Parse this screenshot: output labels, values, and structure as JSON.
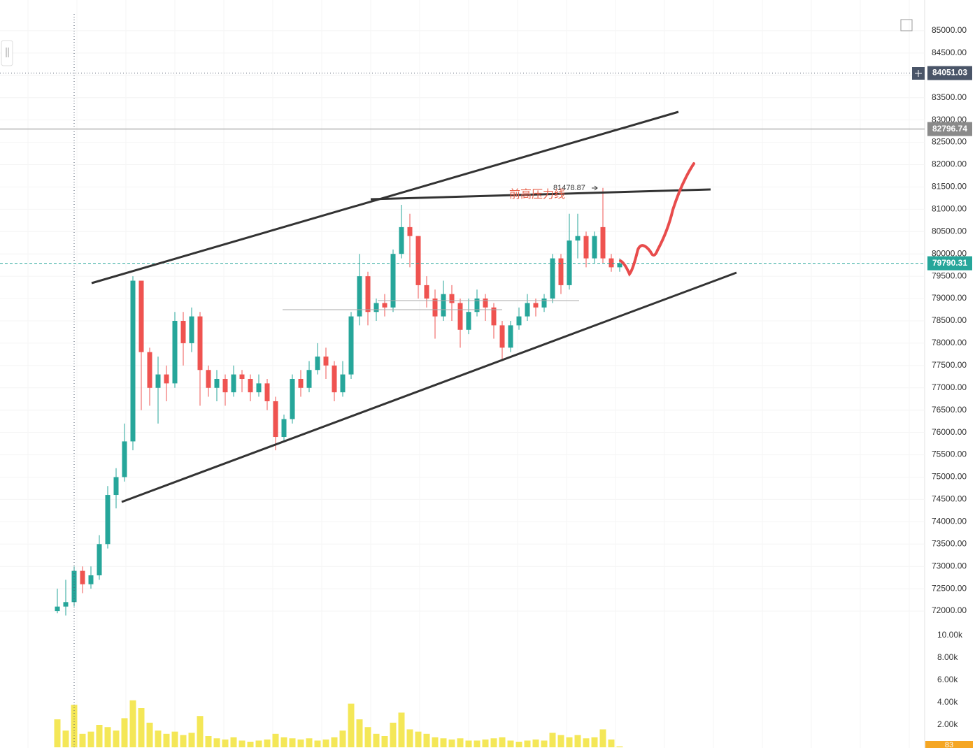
{
  "chart_data": {
    "type": "candlestick",
    "annotation": "前高压力线",
    "up_color": "#26a69a",
    "down_color": "#ef5350",
    "grid": true,
    "open": [
      72000,
      72100,
      72200,
      72900,
      72600,
      72800,
      73500,
      74600,
      75000,
      75800,
      79400,
      77800,
      77000,
      77300,
      77100,
      78500,
      78000,
      78600,
      77400,
      77000,
      77200,
      76900,
      77300,
      77200,
      76900,
      77100,
      76700,
      75900,
      76300,
      77200,
      77000,
      77400,
      77700,
      77500,
      76900,
      77300,
      78600,
      79500,
      78700,
      78900,
      78800,
      80000,
      80600,
      80400,
      79300,
      79000,
      78600,
      79100,
      78900,
      78300,
      78700,
      79000,
      78800,
      78400,
      77900,
      78400,
      78600,
      78900,
      78800,
      79000,
      79900,
      79300,
      80300,
      80400,
      79900,
      80600,
      79900,
      79700
    ],
    "high": [
      72500,
      72700,
      73000,
      73000,
      73000,
      73700,
      74800,
      75200,
      76200,
      79500,
      79400,
      77900,
      77700,
      77500,
      78700,
      78700,
      78800,
      78700,
      77500,
      77400,
      77300,
      77500,
      77400,
      77300,
      77300,
      77200,
      76800,
      76400,
      77300,
      77400,
      77600,
      78000,
      77900,
      77600,
      77600,
      78700,
      80000,
      79600,
      79000,
      79100,
      80100,
      81100,
      80900,
      80400,
      79500,
      79200,
      79400,
      79300,
      79000,
      79000,
      79200,
      79100,
      78900,
      78500,
      78500,
      78800,
      79100,
      79000,
      79100,
      80000,
      80000,
      80900,
      80900,
      80500,
      80500,
      81478.87,
      80000,
      79900
    ],
    "low": [
      71950,
      71900,
      72100,
      72400,
      72500,
      72700,
      73400,
      74300,
      74900,
      75600,
      76500,
      76600,
      76200,
      76700,
      77000,
      77500,
      77800,
      76600,
      76800,
      76700,
      76600,
      76800,
      76900,
      76700,
      76800,
      76500,
      75600,
      75800,
      76200,
      76800,
      76900,
      77300,
      77200,
      76700,
      76800,
      77200,
      78400,
      78400,
      78500,
      78600,
      78700,
      79900,
      79700,
      79000,
      78800,
      78100,
      78500,
      78500,
      77900,
      78200,
      78600,
      78500,
      78100,
      77600,
      77800,
      78300,
      78500,
      78600,
      78700,
      78900,
      79100,
      79200,
      79900,
      79700,
      79800,
      79800,
      79600,
      79600
    ],
    "close": [
      72100,
      72200,
      72900,
      72600,
      72800,
      73500,
      74600,
      75000,
      75800,
      79400,
      77800,
      77000,
      77300,
      77100,
      78500,
      78000,
      78600,
      77400,
      77000,
      77200,
      76900,
      77300,
      77200,
      76900,
      77100,
      76700,
      75900,
      76300,
      77200,
      77000,
      77400,
      77700,
      77500,
      76900,
      77300,
      78600,
      79500,
      78700,
      78900,
      78800,
      80000,
      80600,
      80400,
      79300,
      79000,
      78600,
      79100,
      78900,
      78300,
      78700,
      79000,
      78800,
      78400,
      77900,
      78400,
      78600,
      78900,
      78800,
      79000,
      79900,
      79300,
      80300,
      80400,
      79900,
      80400,
      79900,
      79700,
      79790.31
    ],
    "ylim": [
      71500,
      85500
    ],
    "yticks": [
      {
        "value": 72000,
        "label": "72000.00"
      },
      {
        "value": 72500,
        "label": "72500.00"
      },
      {
        "value": 73000,
        "label": "73000.00"
      },
      {
        "value": 73500,
        "label": "73500.00"
      },
      {
        "value": 74000,
        "label": "74000.00"
      },
      {
        "value": 74500,
        "label": "74500.00"
      },
      {
        "value": 75000,
        "label": "75000.00"
      },
      {
        "value": 75500,
        "label": "75500.00"
      },
      {
        "value": 76000,
        "label": "76000.00"
      },
      {
        "value": 76500,
        "label": "76500.00"
      },
      {
        "value": 77000,
        "label": "77000.00"
      },
      {
        "value": 77500,
        "label": "77500.00"
      },
      {
        "value": 78000,
        "label": "78000.00"
      },
      {
        "value": 78500,
        "label": "78500.00"
      },
      {
        "value": 79000,
        "label": "79000.00"
      },
      {
        "value": 79500,
        "label": "79500.00"
      },
      {
        "value": 80000,
        "label": "80000.00"
      },
      {
        "value": 80500,
        "label": "80500.00"
      },
      {
        "value": 81000,
        "label": "81000.00"
      },
      {
        "value": 81500,
        "label": "81500.00"
      },
      {
        "value": 82000,
        "label": "82000.00"
      },
      {
        "value": 82500,
        "label": "82500.00"
      },
      {
        "value": 83000,
        "label": "83000.00"
      },
      {
        "value": 83500,
        "label": "83500.00"
      },
      {
        "value": 84000,
        "label": "84000.00"
      },
      {
        "value": 84500,
        "label": "84500.00"
      },
      {
        "value": 85000,
        "label": "85000.00"
      }
    ],
    "price_lines": [
      {
        "value": 84051.03,
        "color": "#4a5568",
        "style": "crosshair"
      },
      {
        "value": 82796.74,
        "color": "#8a8a8a",
        "style": "solid"
      },
      {
        "value": 79790.31,
        "color": "#26a69a",
        "style": "dashed"
      }
    ],
    "volume": {
      "color": "#f2e33a",
      "last_color": "#f5a623",
      "values": [
        2500,
        1500,
        3800,
        1200,
        1400,
        2000,
        1800,
        1500,
        2600,
        4200,
        3500,
        2200,
        1500,
        1200,
        1400,
        1100,
        1300,
        2800,
        1000,
        800,
        700,
        900,
        600,
        500,
        600,
        700,
        1200,
        900,
        800,
        700,
        800,
        600,
        700,
        900,
        1500,
        3900,
        2500,
        1800,
        1200,
        1000,
        2200,
        3100,
        1600,
        1400,
        1200,
        900,
        800,
        700,
        800,
        600,
        600,
        700,
        800,
        900,
        600,
        500,
        600,
        700,
        600,
        1300,
        1100,
        900,
        1100,
        800,
        900,
        1600,
        700,
        83
      ],
      "ylim": [
        0,
        11000
      ],
      "yticks": [
        {
          "value": 2000,
          "label": "2.00k"
        },
        {
          "value": 4000,
          "label": "4.00k"
        },
        {
          "value": 6000,
          "label": "6.00k"
        },
        {
          "value": 8000,
          "label": "8.00k"
        },
        {
          "value": 10000,
          "label": "10.00k"
        }
      ]
    }
  }
}
